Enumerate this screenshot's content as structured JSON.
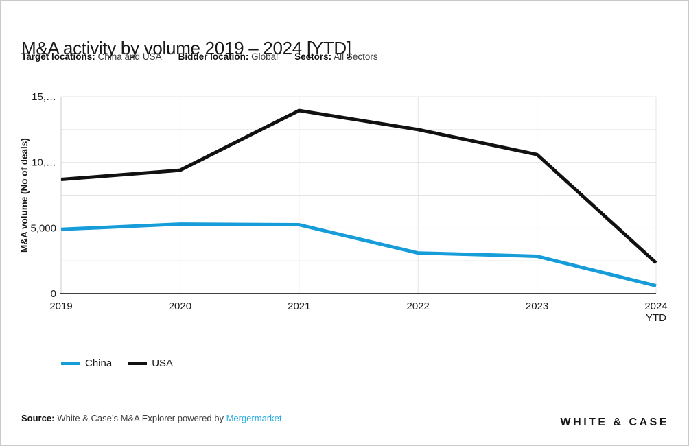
{
  "header": {
    "title": "M&A activity by volume 2019 – 2024 [YTD]",
    "filters": [
      {
        "label": "Target locations:",
        "value": "China and USA"
      },
      {
        "label": "Bidder location:",
        "value": "Global"
      },
      {
        "label": "Sectors:",
        "value": "All Sectors"
      }
    ]
  },
  "chart_data": {
    "type": "line",
    "title": "M&A activity by volume 2019 – 2024 [YTD]",
    "categories": [
      "2019",
      "2020",
      "2021",
      "2022",
      "2023",
      "2024 YTD"
    ],
    "x_tick_lines": [
      [
        "2019"
      ],
      [
        "2020"
      ],
      [
        "2021"
      ],
      [
        "2022"
      ],
      [
        "2023"
      ],
      [
        "2024",
        "YTD"
      ]
    ],
    "series": [
      {
        "name": "China",
        "color": "#169CD8",
        "values": [
          4900,
          5300,
          5250,
          3100,
          2850,
          600
        ]
      },
      {
        "name": "USA",
        "color": "#111111",
        "values": [
          8700,
          9400,
          13950,
          12500,
          10600,
          2350
        ]
      }
    ],
    "xlabel": "",
    "ylabel": "M&A volume (No of deals)",
    "ylim": [
      0,
      15000
    ],
    "yticks": [
      {
        "value": 0,
        "label": "0"
      },
      {
        "value": 5000,
        "label": "5,000"
      },
      {
        "value": 10000,
        "label": "10,…"
      },
      {
        "value": 15000,
        "label": "15,…"
      }
    ],
    "gridline_values": [
      2500,
      5000,
      7500,
      10000,
      12500,
      15000
    ],
    "grid": true,
    "legend_position": "bottom-left",
    "colors": {
      "gridline": "#e4e4e4",
      "y_axis_line": "#cccccc",
      "x_axis_line": "#3f3f3f",
      "tick_text": "#1a1a1a"
    }
  },
  "footer": {
    "source_label": "Source:",
    "source_text": "White & Case’s M&A Explorer powered by",
    "source_link": "Mergermarket",
    "link_color": "#29ABE2"
  },
  "logo": {
    "text": "WHITE & CASE"
  }
}
